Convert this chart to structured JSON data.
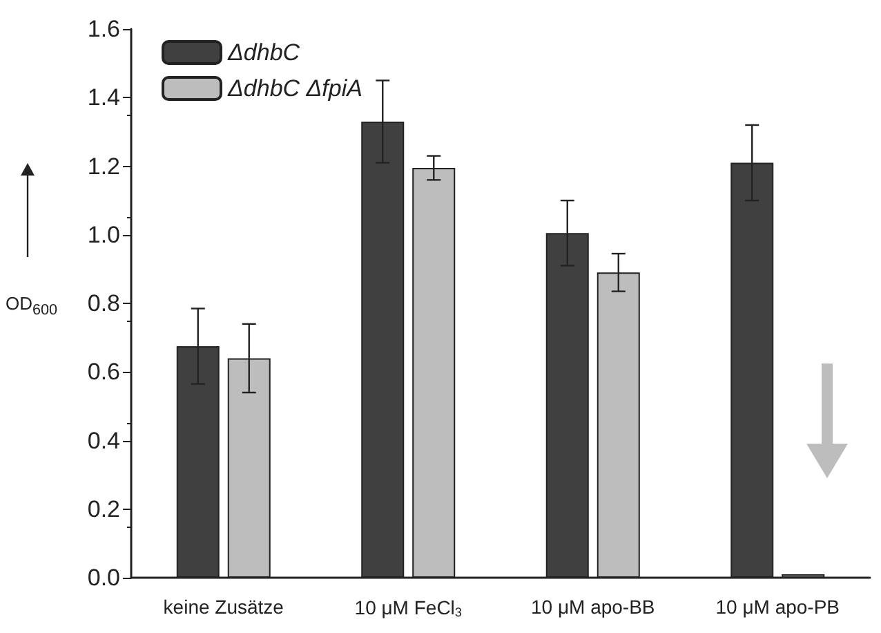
{
  "chart_data": {
    "type": "bar",
    "ylabel": "OD$_{600}$",
    "categories": [
      "keine Zusätze",
      "10 μM FeCl$_{3}$",
      "10 μM apo-BB",
      "10 μM apo-PB"
    ],
    "series": [
      {
        "name": "ΔdhbC",
        "color": "#404040",
        "values": [
          0.675,
          1.33,
          1.005,
          1.21
        ],
        "errors": [
          0.11,
          0.12,
          0.095,
          0.11
        ]
      },
      {
        "name": "ΔdhbC ΔfpiA",
        "color": "#bdbdbd",
        "values": [
          0.64,
          1.195,
          0.89,
          0.01
        ],
        "errors": [
          0.1,
          0.035,
          0.055,
          null
        ]
      }
    ],
    "ylim": [
      0,
      1.6
    ],
    "yticks": [
      {
        "value": 0,
        "label": "0.0"
      },
      {
        "value": 0.2,
        "label": "0.2"
      },
      {
        "value": 0.4,
        "label": "0.4"
      },
      {
        "value": 0.6,
        "label": "0.6"
      },
      {
        "value": 0.8,
        "label": "0.8"
      },
      {
        "value": 1,
        "label": "1.0"
      },
      {
        "value": 1.2,
        "label": "1.2"
      },
      {
        "value": 1.4,
        "label": "1.4"
      },
      {
        "value": 1.6,
        "label": "1.6"
      }
    ],
    "grid": false,
    "legend": "top left"
  }
}
